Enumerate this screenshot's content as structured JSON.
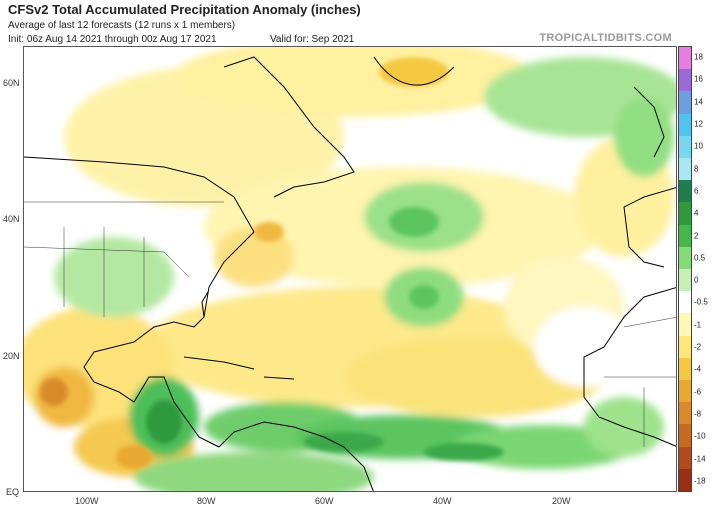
{
  "header": {
    "title": "CFSv2 Total Accumulated Precipitation Anomaly (inches)",
    "subtitle": "Average of last 12 forecasts (12 runs x 1 members)",
    "init": "Init: 06z Aug 14 2021 through 00z Aug 17 2021",
    "valid": "Valid for: Sep 2021",
    "brand": "TROPICALTIDBITS.COM"
  },
  "map": {
    "lat_labels": [
      "60N",
      "40N",
      "20N",
      "EQ"
    ],
    "lon_labels": [
      "100W",
      "80W",
      "60W",
      "40W",
      "20W"
    ],
    "land_color": "#ffffff",
    "coast_color": "#000000"
  },
  "legend": {
    "labels": [
      "18",
      "16",
      "14",
      "12",
      "10",
      "8",
      "6",
      "4",
      "2",
      "0.5",
      "0",
      "-0.5",
      "-1",
      "-2",
      "-4",
      "-6",
      "-8",
      "-10",
      "-14",
      "-18"
    ],
    "colors": [
      "#e67ee0",
      "#9b6ad8",
      "#6aa0e2",
      "#4fc4f0",
      "#78d8f4",
      "#a8e8f5",
      "#1f7d4f",
      "#2e9a3c",
      "#44b94a",
      "#86db78",
      "#c6efb8",
      "#ffffff",
      "#fff7b8",
      "#fde67a",
      "#f5c842",
      "#e8a830",
      "#d88a2a",
      "#c56a22",
      "#b14a1c",
      "#9a2e14"
    ]
  }
}
